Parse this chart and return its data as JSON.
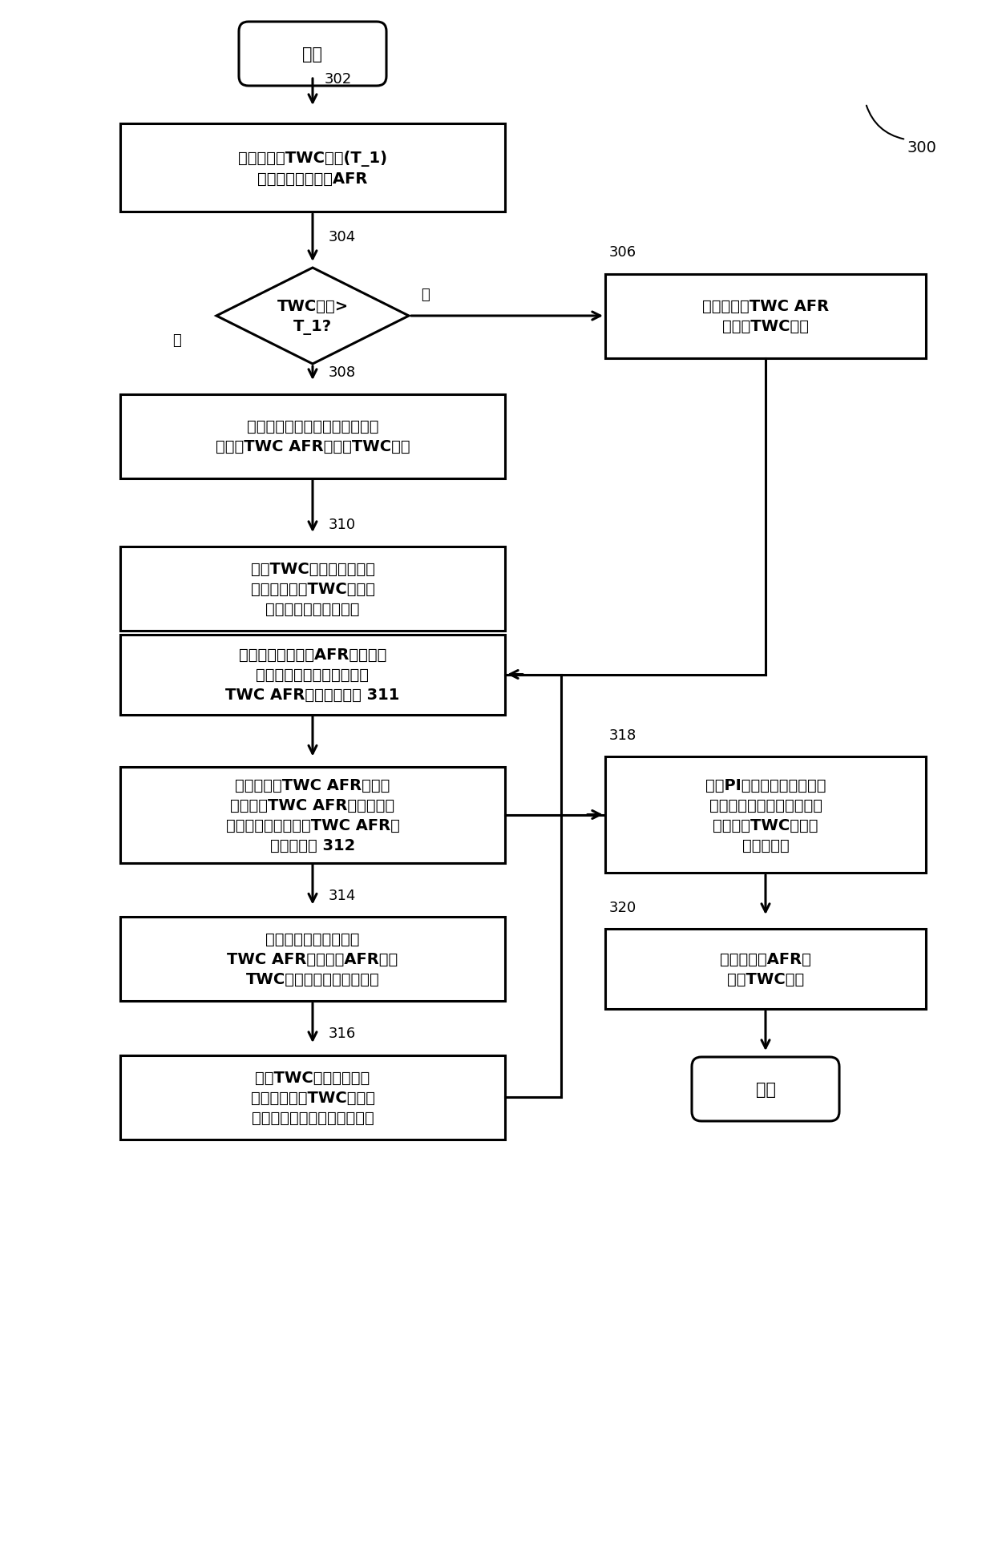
{
  "bg_color": "#ffffff",
  "line_color": "#000000",
  "text_color": "#000000",
  "fig_width": 12.4,
  "fig_height": 19.24,
  "label_300": "300",
  "label_302": "302",
  "label_304": "304",
  "label_306": "306",
  "label_308": "308",
  "label_310": "310",
  "label_314": "314",
  "label_316": "316",
  "label_318": "318",
  "label_320": "320",
  "start_text": "开始",
  "end_text": "结束",
  "box302_line1": "根据所需的TWC温度(T_1)",
  "box302_line2": "估计所需的发动机AFR",
  "box306_line1": "估计所需的TWC AFR",
  "box306_line2": "以维持TWC温度",
  "diamond304_line1": "TWC温度>",
  "diamond304_line2": "T_1?",
  "yes_text": "是",
  "no_text": "否",
  "box308_line1": "根据发动机点火事件的数量估计",
  "box308_line2": "所需的TWC AFR以升高TWC温度",
  "box310_line1": "估计TWC上游的用于实现",
  "box310_line2": "或维持所需的TWC温度的",
  "box310_line3": "所需的二次空气流的量",
  "box311_line1": "根据所需的发动机AFR和发动机",
  "box311_line2": "空气质量估计用于化学计量",
  "box311_line3": "TWC AFR的二次空气流 311",
  "box312_line1": "根据所需的TWC AFR和用于",
  "box312_line2": "化学计量TWC AFR的二次空气",
  "box312_line3": "流估计用于化学计量TWC AFR的",
  "box312_line4": "二次空气流 312",
  "box314_line1": "根据发动机空气质量、",
  "box314_line2": "TWC AFR和发动机AFR测量",
  "box314_line3": "TWC上游的当前二次空气流",
  "box316_line1": "估计TWC上游的测量的",
  "box316_line2": "二次空气流与TWC上游的",
  "box316_line3": "所需的二次空气流之间的差値",
  "box318_line1": "使用PI控制器以基于测量的",
  "box318_line2": "空气流与所需空气流之间的",
  "box318_line3": "差値调整TWC上游的",
  "box318_line4": "二次空气流",
  "box320_line1": "调整发动机AFR以",
  "box320_line2": "升高TWC温度"
}
